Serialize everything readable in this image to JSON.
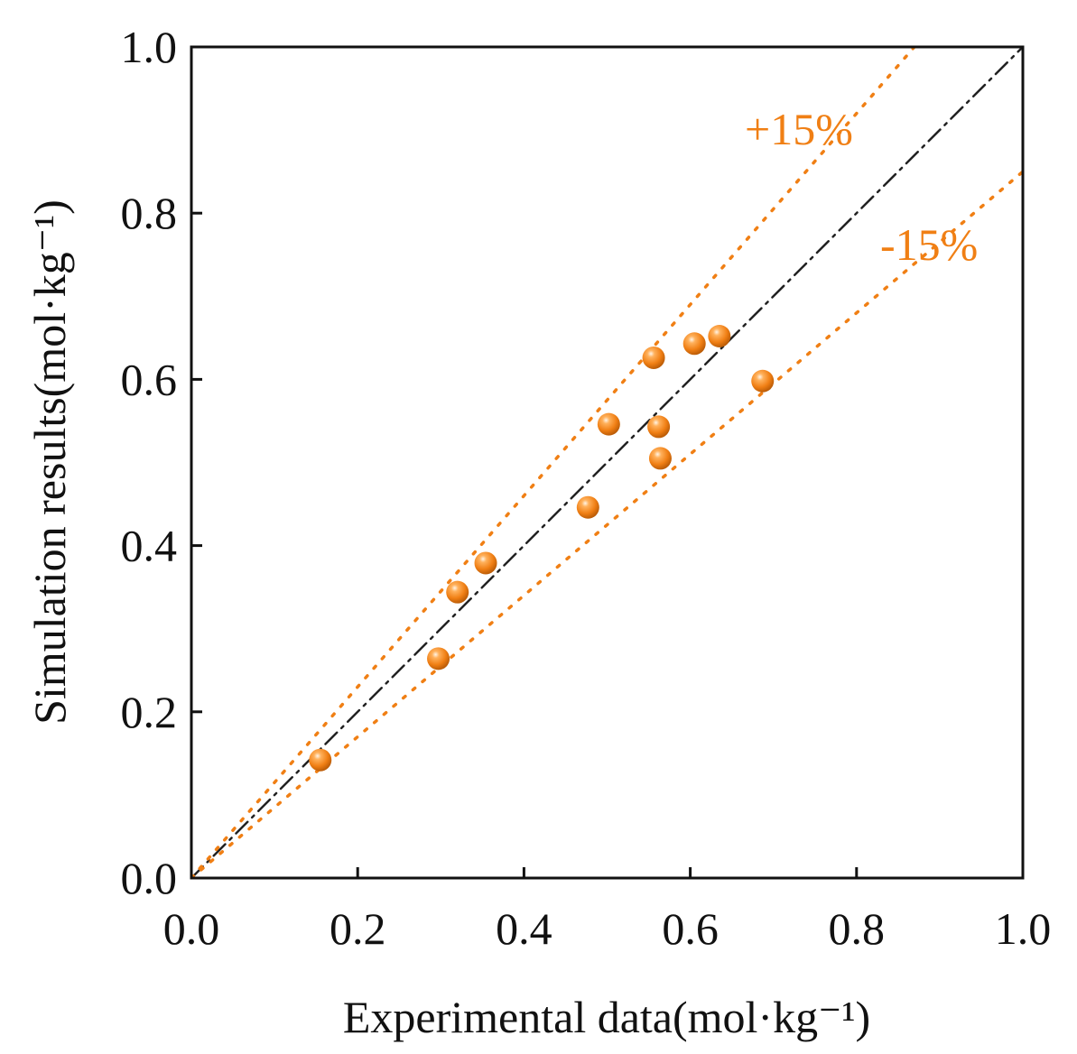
{
  "chart_data": {
    "type": "scatter",
    "xlabel": "Experimental data(mol·kg⁻¹)",
    "ylabel": "Simulation results(mol·kg⁻¹)",
    "xlim": [
      0,
      1.0
    ],
    "ylim": [
      0,
      1.0
    ],
    "xticks": [
      "0.0",
      "0.2",
      "0.4",
      "0.6",
      "0.8",
      "1.0"
    ],
    "yticks": [
      "0.0",
      "0.2",
      "0.4",
      "0.6",
      "0.8",
      "1.0"
    ],
    "grid": false,
    "points": [
      {
        "x": 0.155,
        "y": 0.142
      },
      {
        "x": 0.297,
        "y": 0.264
      },
      {
        "x": 0.32,
        "y": 0.344
      },
      {
        "x": 0.354,
        "y": 0.379
      },
      {
        "x": 0.477,
        "y": 0.446
      },
      {
        "x": 0.502,
        "y": 0.546
      },
      {
        "x": 0.556,
        "y": 0.626
      },
      {
        "x": 0.562,
        "y": 0.543
      },
      {
        "x": 0.564,
        "y": 0.505
      },
      {
        "x": 0.605,
        "y": 0.643
      },
      {
        "x": 0.635,
        "y": 0.652
      },
      {
        "x": 0.687,
        "y": 0.598
      }
    ],
    "reference_lines": [
      {
        "label": "",
        "slope": 1.0,
        "style": "dash-dot",
        "color": "#222222"
      },
      {
        "label": "+15%",
        "slope": 1.15,
        "style": "dotted",
        "color": "#f07f14"
      },
      {
        "label": "-15%",
        "slope": 0.85,
        "style": "dotted",
        "color": "#f07f14"
      }
    ],
    "colors": {
      "marker": "#f07f14",
      "axis": "#111111"
    }
  }
}
